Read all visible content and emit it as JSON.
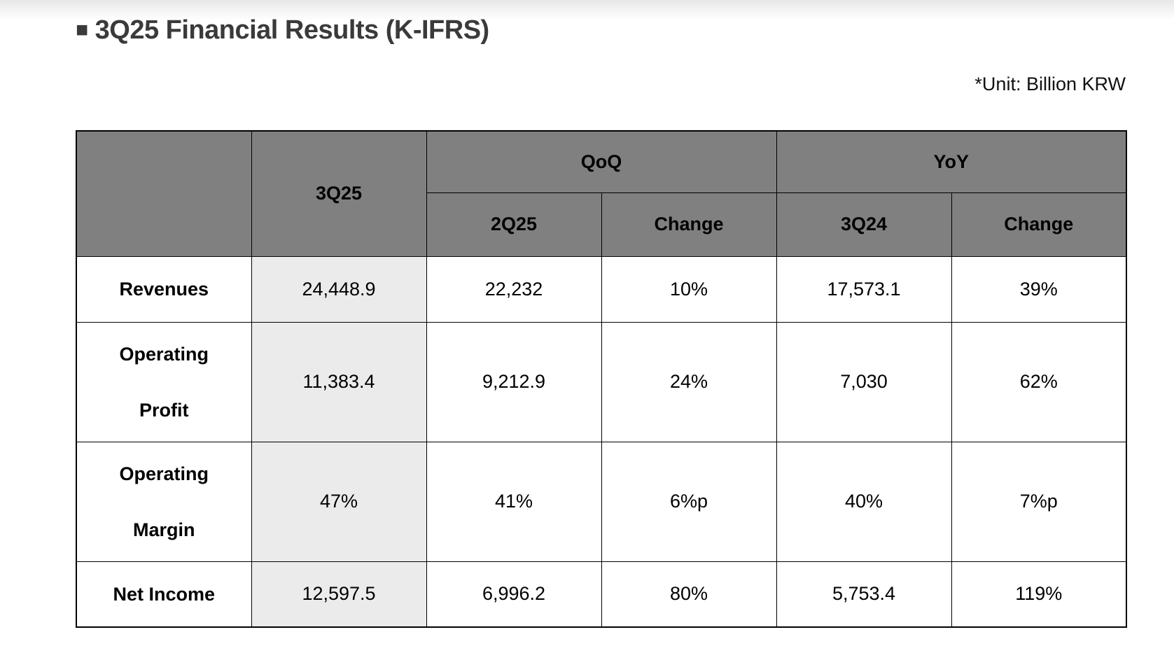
{
  "page": {
    "bullet": "■",
    "title": "3Q25 Financial Results (K-IFRS)",
    "unit_note": "*Unit: Billion KRW"
  },
  "table": {
    "header": {
      "q3_25": "3Q25",
      "groups": [
        {
          "label": "QoQ",
          "cols": [
            "2Q25",
            "Change"
          ]
        },
        {
          "label": "YoY",
          "cols": [
            "3Q24",
            "Change"
          ]
        }
      ]
    },
    "rows": [
      {
        "label_lines": [
          "Revenues"
        ],
        "values": [
          "24,448.9",
          "22,232",
          "10%",
          "17,573.1",
          "39%"
        ]
      },
      {
        "label_lines": [
          "Operating",
          "Profit"
        ],
        "values": [
          "11,383.4",
          "9,212.9",
          "24%",
          "7,030",
          "62%"
        ]
      },
      {
        "label_lines": [
          "Operating",
          "Margin"
        ],
        "values": [
          "47%",
          "41%",
          "6%p",
          "40%",
          "7%p"
        ]
      },
      {
        "label_lines": [
          "Net Income"
        ],
        "values": [
          "12,597.5",
          "6,996.2",
          "80%",
          "5,753.4",
          "119%"
        ]
      }
    ],
    "colors": {
      "header_bg": "#808080",
      "highlight_bg": "#ebebeb",
      "border": "#000000"
    }
  },
  "chart_data": {
    "type": "table",
    "title": "3Q25 Financial Results (K-IFRS)",
    "unit": "Billion KRW",
    "columns": [
      "",
      "3Q25",
      "QoQ 2Q25",
      "QoQ Change",
      "YoY 3Q24",
      "YoY Change"
    ],
    "rows": [
      [
        "Revenues",
        "24,448.9",
        "22,232",
        "10%",
        "17,573.1",
        "39%"
      ],
      [
        "Operating Profit",
        "11,383.4",
        "9,212.9",
        "24%",
        "7,030",
        "62%"
      ],
      [
        "Operating Margin",
        "47%",
        "41%",
        "6%p",
        "40%",
        "7%p"
      ],
      [
        "Net Income",
        "12,597.5",
        "6,996.2",
        "80%",
        "5,753.4",
        "119%"
      ]
    ]
  }
}
